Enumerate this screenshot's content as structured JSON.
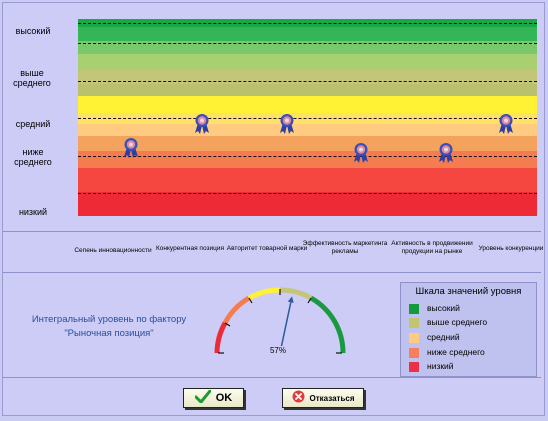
{
  "levels": [
    "высокий",
    "выше среднего",
    "средний",
    "ниже среднего",
    "низкий"
  ],
  "criteria": [
    {
      "label": "Сепень инновационности",
      "level_value": 2.45
    },
    {
      "label": "Конкурентная позиция",
      "level_value": 3.0
    },
    {
      "label": "Авторитет товарной марки",
      "level_value": 3.0
    },
    {
      "label": "Эффективность маркетинга рекламы",
      "level_value": 2.35
    },
    {
      "label": "Активность в продвижении продукции на рынке",
      "level_value": 2.35
    },
    {
      "label": "Уровень конкуренции",
      "level_value": 3.0
    }
  ],
  "integral": {
    "text_line1": "Интегральный уровень по фактору",
    "text_line2": "\"Рыночная позиция\"",
    "percent": 57,
    "percent_label": "57%"
  },
  "legend": {
    "title": "Шкала значений уровня",
    "items": [
      {
        "label": "высокий",
        "color": "#129a3c"
      },
      {
        "label": "выше среднего",
        "color": "#c1c66e"
      },
      {
        "label": "средний",
        "color": "#ffcc7f"
      },
      {
        "label": "ниже среднего",
        "color": "#f47f5a"
      },
      {
        "label": "низкий",
        "color": "#ee2f46"
      }
    ]
  },
  "buttons": {
    "ok": "OK",
    "cancel": "Отказаться"
  },
  "colors": {
    "band_high": [
      "#1fae49",
      "#54c366",
      "#9fcf6b"
    ],
    "band_above": [
      "#c7c87a",
      "#b7c06d"
    ],
    "band_mid": [
      "#ffef3a",
      "#ffd47e"
    ],
    "band_below": [
      "#f4a05e",
      "#f77a4f"
    ],
    "band_low": [
      "#f4453e",
      "#ee2a37"
    ]
  }
}
